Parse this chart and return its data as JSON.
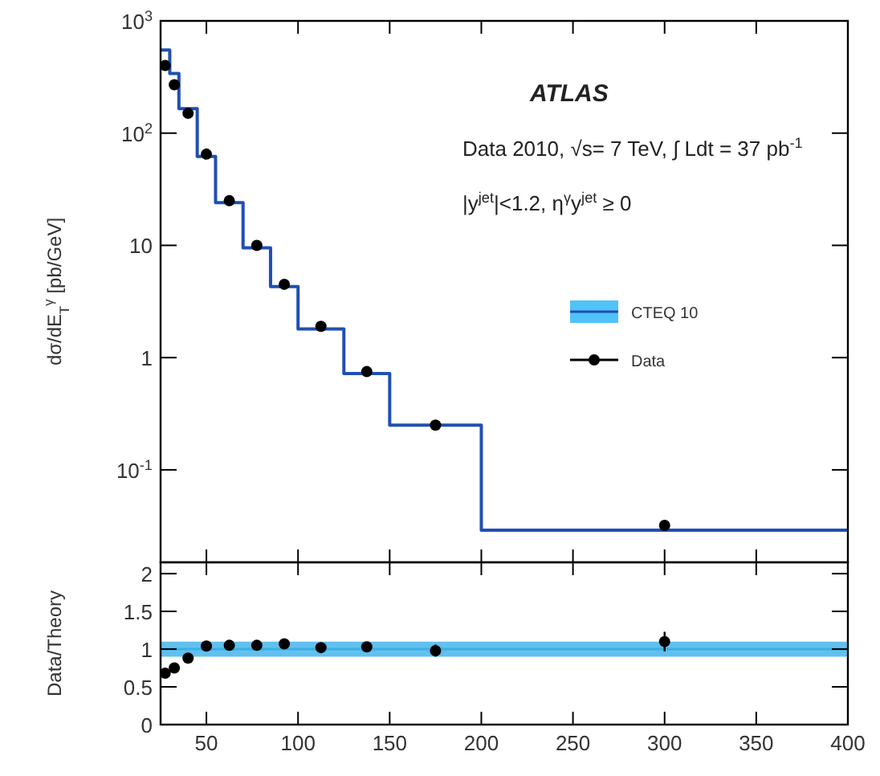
{
  "chart_data": [
    {
      "type": "histogram",
      "ylabel": "dσ/dE$_{T}$$^{γ}$ [pb/GeV]",
      "annotations": [
        "ATLAS",
        "Data 2010, √s= 7 TeV, ∫ Ldt = 37 pb$^{-1}$",
        "|y$^{jet}$|<1.2, η$^{γ}$y$^{jet}$ ≥ 0"
      ],
      "xlim": [
        25,
        400
      ],
      "xticks": [
        50,
        100,
        150,
        200,
        250,
        300,
        350,
        400
      ],
      "log": "y",
      "ylim": [
        0.015,
        1000
      ],
      "yticks": [
        {
          "value": 1000,
          "label": "10$^{3}$"
        },
        {
          "value": 100,
          "label": "10$^{2}$"
        },
        10,
        1,
        {
          "value": 0.1,
          "label": "10$^{-1}$"
        }
      ],
      "tick_labels": "y",
      "legend": "right",
      "series": [
        {
          "name": "CTEQ 10",
          "color": "#1f4fb4",
          "bins": [
            25,
            30,
            35,
            45,
            55,
            70,
            85,
            100,
            125,
            150,
            200,
            400
          ],
          "values": [
            550,
            340,
            165,
            62,
            24,
            9.5,
            4.3,
            1.8,
            0.72,
            0.25,
            0.029
          ]
        },
        {
          "type": "scatter",
          "marker": "circle",
          "name": "Data",
          "color": "#000000",
          "x": [
            27.5,
            32.5,
            40,
            50,
            62.5,
            77.5,
            92.5,
            112.5,
            137.5,
            175,
            300
          ],
          "values": [
            400,
            270,
            150,
            65,
            25,
            10,
            4.5,
            1.9,
            0.75,
            0.25,
            0.032
          ]
        }
      ]
    },
    {
      "type": "scatter",
      "ylabel": "Data/Theory",
      "xlim": [
        25,
        400
      ],
      "xticks": [
        50,
        100,
        150,
        200,
        250,
        300,
        350,
        400
      ],
      "ylim": [
        0,
        2.15
      ],
      "yticks": [
        0,
        0.5,
        1,
        1.5,
        2
      ],
      "series": [
        {
          "type": "line",
          "color": "#3ab0e8",
          "x": [
            25,
            400
          ],
          "values": [
            1,
            1
          ],
          "lower": [
            0.9,
            0.9
          ],
          "upper": [
            1.1,
            1.1
          ]
        },
        {
          "marker": "circle",
          "color": "#000000",
          "x": [
            27.5,
            32.5,
            40,
            50,
            62.5,
            77.5,
            92.5,
            112.5,
            137.5,
            175,
            300
          ],
          "values": [
            0.68,
            0.75,
            0.88,
            1.04,
            1.05,
            1.05,
            1.07,
            1.02,
            1.03,
            0.98,
            1.1
          ],
          "errors": [
            0.03,
            0.03,
            0.03,
            0.03,
            0.03,
            0.03,
            0.04,
            0.04,
            0.05,
            0.08,
            0.13
          ]
        }
      ]
    }
  ]
}
